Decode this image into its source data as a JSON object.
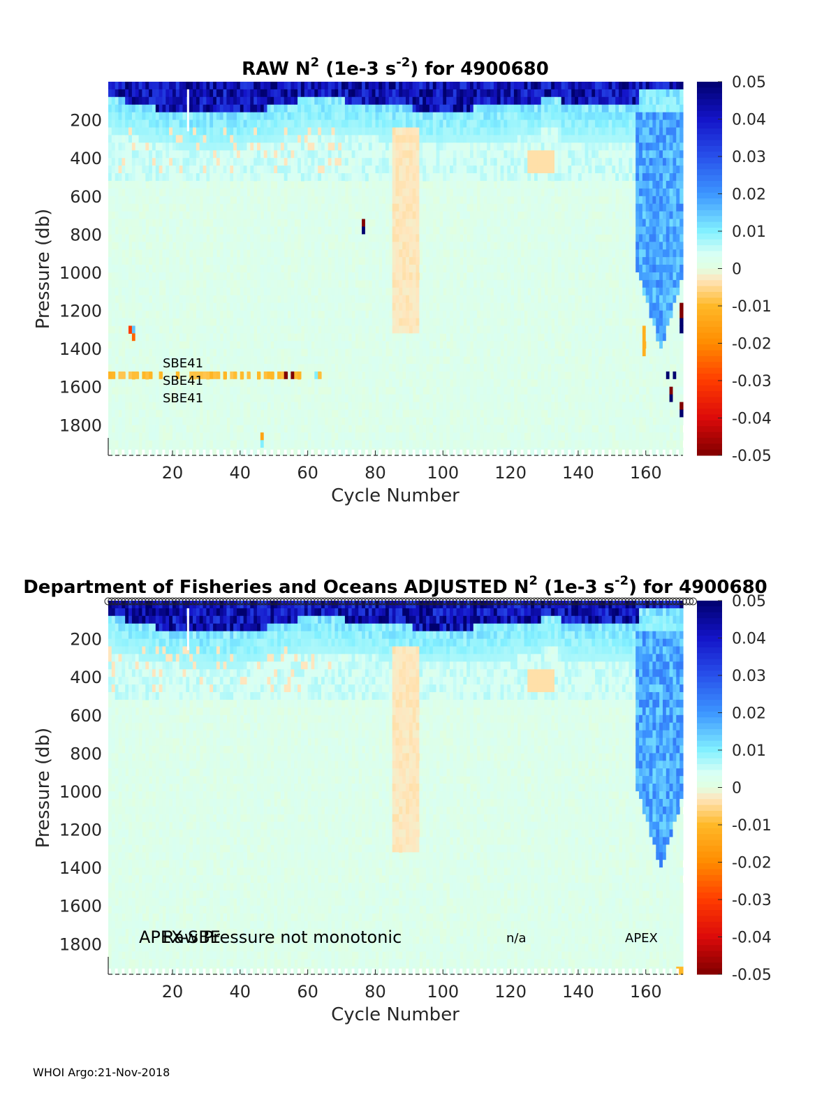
{
  "chart_data": [
    {
      "type": "heatmap",
      "title_prefix": "RAW N",
      "title_sup1": "2",
      "title_mid": " (1e-3 s",
      "title_sup2": "-2",
      "title_suffix": ") for 4900680",
      "xlabel": "Cycle Number",
      "ylabel": "Pressure (db)",
      "xlim": [
        1,
        171
      ],
      "ylim": [
        0,
        1960
      ],
      "xticks": [
        20,
        40,
        60,
        80,
        100,
        120,
        140,
        160
      ],
      "yticks": [
        200,
        400,
        600,
        800,
        1000,
        1200,
        1400,
        1600,
        1800
      ],
      "colorbar": {
        "range": [
          -0.05,
          0.05
        ],
        "ticks": [
          "0.05",
          "0.04",
          "0.03",
          "0.02",
          "0.01",
          "0",
          "-0.01",
          "-0.02",
          "-0.03",
          "-0.04",
          "-0.05"
        ]
      },
      "annotations": [
        "SBE41",
        "SBE41",
        "SBE41"
      ],
      "features": [
        {
          "desc": "strong positive stratification near surface",
          "cycles": [
            1,
            60
          ],
          "pressure": [
            0,
            150
          ],
          "value": 0.04
        },
        {
          "desc": "strong positive stratification near surface",
          "cycles": [
            95,
            125
          ],
          "pressure": [
            0,
            120
          ],
          "value": 0.05
        },
        {
          "desc": "strong positive stratification near surface",
          "cycles": [
            135,
            157
          ],
          "pressure": [
            0,
            100
          ],
          "value": 0.05
        },
        {
          "desc": "elevated N2 deep water column",
          "cycles": [
            157,
            171
          ],
          "pressure": [
            150,
            1400
          ],
          "value": 0.02
        },
        {
          "desc": "negative N2 at ~1500 db",
          "cycles": [
            1,
            65
          ],
          "pressure": [
            1480,
            1540
          ],
          "value": -0.01
        }
      ]
    },
    {
      "type": "heatmap",
      "title_prefix": "Department of Fisheries and Oceans  ADJUSTED N",
      "title_sup1": "2",
      "title_mid": " (1e-3 s",
      "title_sup2": "-2",
      "title_suffix": ") for 4900680",
      "xlabel": "Cycle Number",
      "ylabel": "Pressure (db)",
      "xlim": [
        1,
        171
      ],
      "ylim": [
        0,
        1960
      ],
      "xticks": [
        20,
        40,
        60,
        80,
        100,
        120,
        140,
        160
      ],
      "yticks": [
        200,
        400,
        600,
        800,
        1000,
        1200,
        1400,
        1600,
        1800
      ],
      "colorbar": {
        "range": [
          -0.05,
          0.05
        ],
        "ticks": [
          "0.05",
          "0.04",
          "0.03",
          "0.02",
          "0.01",
          "0",
          "-0.01",
          "-0.02",
          "-0.03",
          "-0.04",
          "-0.05"
        ]
      },
      "annotations": [
        "APEX-SBE",
        "Raw Pressure not monotonic",
        "n/a",
        "APEX"
      ]
    }
  ],
  "footer": "WHOI Argo:21-Nov-2018"
}
